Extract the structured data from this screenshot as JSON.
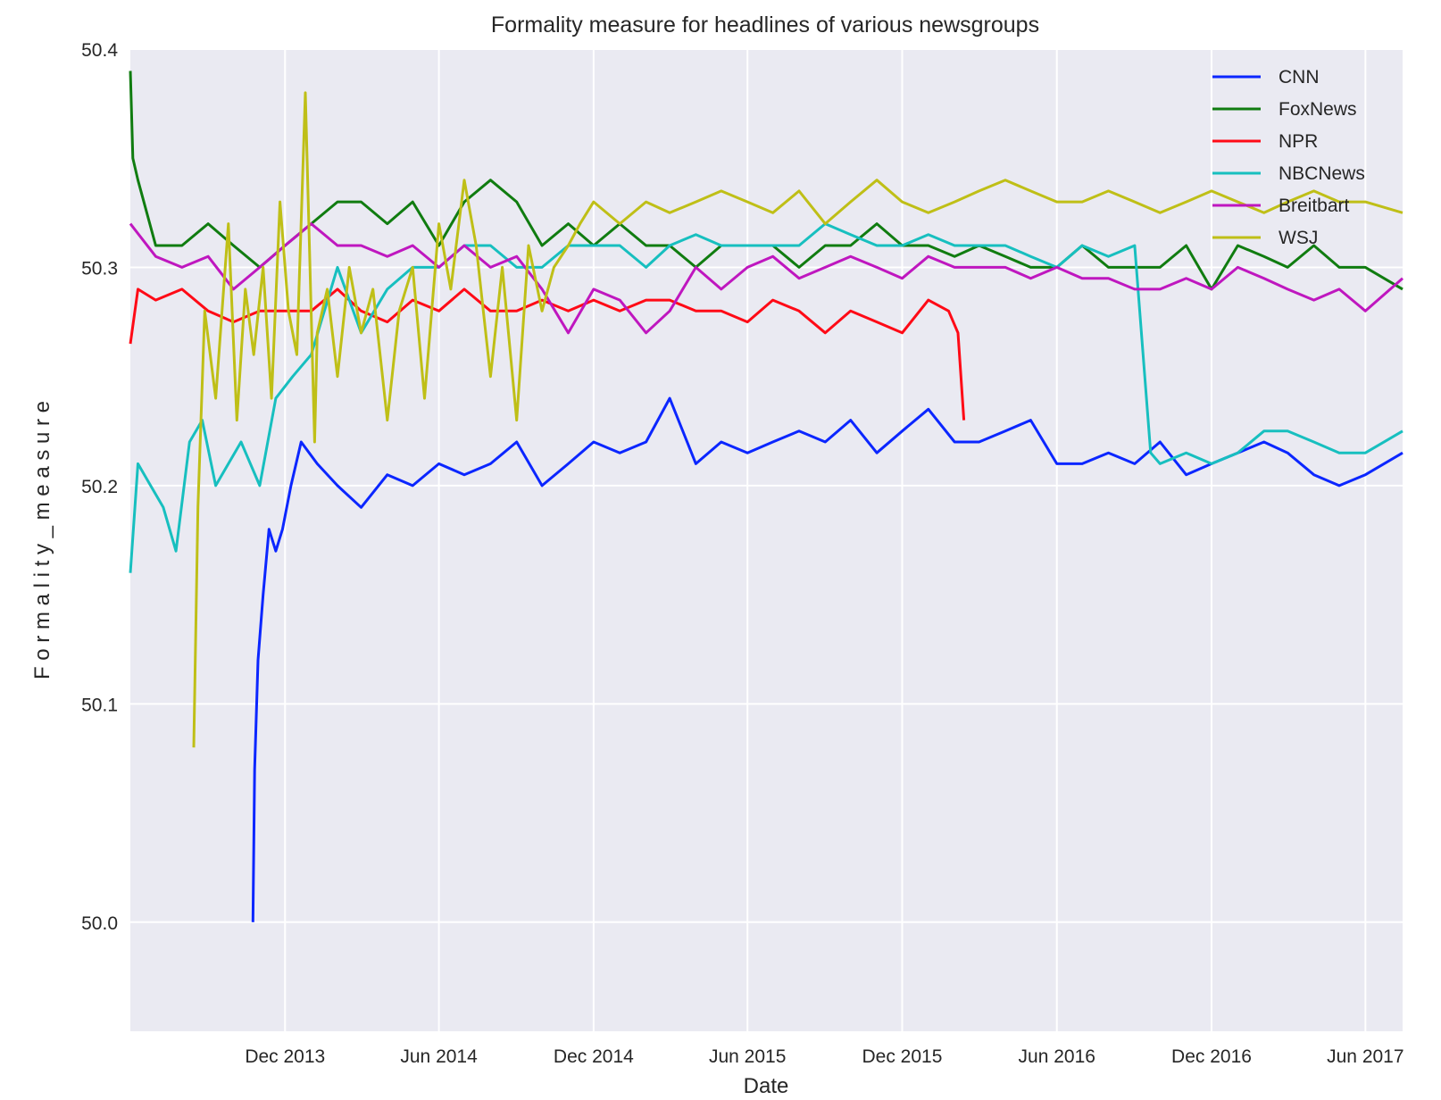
{
  "chart_data": {
    "type": "line",
    "title": "Formality measure for headlines of various newsgroups",
    "xlabel": "Date",
    "ylabel": "F o r m a l i t y _ m e a s u r e",
    "xlim": [
      "2013-06-01",
      "2017-07-15"
    ],
    "ylim": [
      49.95,
      50.4
    ],
    "x_ticks": [
      {
        "date": "2013-12-01",
        "label": "Dec 2013"
      },
      {
        "date": "2014-06-01",
        "label": "Jun 2014"
      },
      {
        "date": "2014-12-01",
        "label": "Dec 2014"
      },
      {
        "date": "2015-06-01",
        "label": "Jun 2015"
      },
      {
        "date": "2015-12-01",
        "label": "Dec 2015"
      },
      {
        "date": "2016-06-01",
        "label": "Jun 2016"
      },
      {
        "date": "2016-12-01",
        "label": "Dec 2016"
      },
      {
        "date": "2017-06-01",
        "label": "Jun 2017"
      }
    ],
    "y_ticks": [
      {
        "value": 50.0,
        "label": "50.0"
      },
      {
        "value": 50.1,
        "label": "50.1"
      },
      {
        "value": 50.2,
        "label": "50.2"
      },
      {
        "value": 50.3,
        "label": "50.3"
      },
      {
        "value": 50.4,
        "label": "50.4"
      }
    ],
    "grid": true,
    "background": "#eaeaf2",
    "legend_position": "top-right",
    "series": [
      {
        "name": "CNN",
        "color": "#0b26ff",
        "x": [
          "2013-10-24",
          "2013-10-26",
          "2013-10-30",
          "2013-11-05",
          "2013-11-12",
          "2013-11-20",
          "2013-11-28",
          "2013-12-08",
          "2013-12-20",
          "2014-01-08",
          "2014-02-01",
          "2014-03-01",
          "2014-04-01",
          "2014-05-01",
          "2014-06-01",
          "2014-07-01",
          "2014-08-01",
          "2014-09-01",
          "2014-10-01",
          "2014-11-01",
          "2014-12-01",
          "2015-01-01",
          "2015-02-01",
          "2015-03-01",
          "2015-04-01",
          "2015-05-01",
          "2015-06-01",
          "2015-07-01",
          "2015-08-01",
          "2015-09-01",
          "2015-10-01",
          "2015-11-01",
          "2015-12-01",
          "2016-01-01",
          "2016-02-01",
          "2016-03-01",
          "2016-04-01",
          "2016-05-01",
          "2016-06-01",
          "2016-07-01",
          "2016-08-01",
          "2016-09-01",
          "2016-10-01",
          "2016-11-01",
          "2016-12-01",
          "2017-01-01",
          "2017-02-01",
          "2017-03-01",
          "2017-04-01",
          "2017-05-01",
          "2017-06-01",
          "2017-07-15"
        ],
        "y": [
          50.0,
          50.07,
          50.12,
          50.15,
          50.18,
          50.17,
          50.18,
          50.2,
          50.22,
          50.21,
          50.2,
          50.19,
          50.205,
          50.2,
          50.21,
          50.205,
          50.21,
          50.22,
          50.2,
          50.21,
          50.22,
          50.215,
          50.22,
          50.24,
          50.21,
          50.22,
          50.215,
          50.22,
          50.225,
          50.22,
          50.23,
          50.215,
          50.225,
          50.235,
          50.22,
          50.22,
          50.225,
          50.23,
          50.21,
          50.21,
          50.215,
          50.21,
          50.22,
          50.205,
          50.21,
          50.215,
          50.22,
          50.215,
          50.205,
          50.2,
          50.205,
          50.215
        ]
      },
      {
        "name": "FoxNews",
        "color": "#107c10",
        "x": [
          "2013-06-01",
          "2013-06-04",
          "2013-06-10",
          "2013-07-01",
          "2013-08-01",
          "2013-09-01",
          "2013-10-01",
          "2013-11-01",
          "2013-12-01",
          "2014-01-01",
          "2014-02-01",
          "2014-03-01",
          "2014-04-01",
          "2014-05-01",
          "2014-06-01",
          "2014-07-01",
          "2014-08-01",
          "2014-09-01",
          "2014-10-01",
          "2014-11-01",
          "2014-12-01",
          "2015-01-01",
          "2015-02-01",
          "2015-03-01",
          "2015-04-01",
          "2015-05-01",
          "2015-06-01",
          "2015-07-01",
          "2015-08-01",
          "2015-09-01",
          "2015-10-01",
          "2015-11-01",
          "2015-12-01",
          "2016-01-01",
          "2016-02-01",
          "2016-03-01",
          "2016-04-01",
          "2016-05-01",
          "2016-06-01",
          "2016-07-01",
          "2016-08-01",
          "2016-09-01",
          "2016-10-01",
          "2016-11-01",
          "2016-12-01",
          "2017-01-01",
          "2017-02-01",
          "2017-03-01",
          "2017-04-01",
          "2017-05-01",
          "2017-06-01",
          "2017-07-15"
        ],
        "y": [
          50.39,
          50.35,
          50.34,
          50.31,
          50.31,
          50.32,
          50.31,
          50.3,
          50.31,
          50.32,
          50.33,
          50.33,
          50.32,
          50.33,
          50.31,
          50.33,
          50.34,
          50.33,
          50.31,
          50.32,
          50.31,
          50.32,
          50.31,
          50.31,
          50.3,
          50.31,
          50.31,
          50.31,
          50.3,
          50.31,
          50.31,
          50.32,
          50.31,
          50.31,
          50.305,
          50.31,
          50.305,
          50.3,
          50.3,
          50.31,
          50.3,
          50.3,
          50.3,
          50.31,
          50.29,
          50.31,
          50.305,
          50.3,
          50.31,
          50.3,
          50.3,
          50.29
        ]
      },
      {
        "name": "NPR",
        "color": "#ff0a16",
        "x": [
          "2013-06-01",
          "2013-06-10",
          "2013-07-01",
          "2013-08-01",
          "2013-09-01",
          "2013-10-01",
          "2013-11-01",
          "2013-12-01",
          "2014-01-01",
          "2014-02-01",
          "2014-03-01",
          "2014-04-01",
          "2014-05-01",
          "2014-06-01",
          "2014-07-01",
          "2014-08-01",
          "2014-09-01",
          "2014-10-01",
          "2014-11-01",
          "2014-12-01",
          "2015-01-01",
          "2015-02-01",
          "2015-03-01",
          "2015-04-01",
          "2015-05-01",
          "2015-06-01",
          "2015-07-01",
          "2015-08-01",
          "2015-09-01",
          "2015-10-01",
          "2015-11-01",
          "2015-12-01",
          "2016-01-01",
          "2016-01-25",
          "2016-02-05",
          "2016-02-12"
        ],
        "y": [
          50.265,
          50.29,
          50.285,
          50.29,
          50.28,
          50.275,
          50.28,
          50.28,
          50.28,
          50.29,
          50.28,
          50.275,
          50.285,
          50.28,
          50.29,
          50.28,
          50.28,
          50.285,
          50.28,
          50.285,
          50.28,
          50.285,
          50.285,
          50.28,
          50.28,
          50.275,
          50.285,
          50.28,
          50.27,
          50.28,
          50.275,
          50.27,
          50.285,
          50.28,
          50.27,
          50.23
        ]
      },
      {
        "name": "NBCNews",
        "color": "#17bfbf",
        "x": [
          "2013-06-01",
          "2013-06-10",
          "2013-06-25",
          "2013-07-10",
          "2013-07-25",
          "2013-08-10",
          "2013-08-25",
          "2013-09-10",
          "2013-09-25",
          "2013-10-10",
          "2013-11-01",
          "2013-11-20",
          "2013-12-10",
          "2014-01-01",
          "2014-02-01",
          "2014-03-01",
          "2014-04-01",
          "2014-05-01",
          "2014-06-01",
          "2014-07-01",
          "2014-08-01",
          "2014-09-01",
          "2014-10-01",
          "2014-11-01",
          "2014-12-01",
          "2015-01-01",
          "2015-02-01",
          "2015-03-01",
          "2015-04-01",
          "2015-05-01",
          "2015-06-01",
          "2015-07-01",
          "2015-08-01",
          "2015-09-01",
          "2015-10-01",
          "2015-11-01",
          "2015-12-01",
          "2016-01-01",
          "2016-02-01",
          "2016-03-01",
          "2016-04-01",
          "2016-05-01",
          "2016-06-01",
          "2016-07-01",
          "2016-08-01",
          "2016-09-01",
          "2016-09-20",
          "2016-10-01",
          "2016-11-01",
          "2016-12-01",
          "2017-01-01",
          "2017-02-01",
          "2017-03-01",
          "2017-04-01",
          "2017-05-01",
          "2017-06-01",
          "2017-07-15"
        ],
        "y": [
          50.16,
          50.21,
          50.2,
          50.19,
          50.17,
          50.22,
          50.23,
          50.2,
          50.21,
          50.22,
          50.2,
          50.24,
          50.25,
          50.26,
          50.3,
          50.27,
          50.29,
          50.3,
          50.3,
          50.31,
          50.31,
          50.3,
          50.3,
          50.31,
          50.31,
          50.31,
          50.3,
          50.31,
          50.315,
          50.31,
          50.31,
          50.31,
          50.31,
          50.32,
          50.315,
          50.31,
          50.31,
          50.315,
          50.31,
          50.31,
          50.31,
          50.305,
          50.3,
          50.31,
          50.305,
          50.31,
          50.215,
          50.21,
          50.215,
          50.21,
          50.215,
          50.225,
          50.225,
          50.22,
          50.215,
          50.215,
          50.225
        ]
      },
      {
        "name": "Breitbart",
        "color": "#bf17bf",
        "x": [
          "2013-06-01",
          "2013-07-01",
          "2013-08-01",
          "2013-09-01",
          "2013-10-01",
          "2013-11-01",
          "2013-12-01",
          "2014-01-01",
          "2014-02-01",
          "2014-03-01",
          "2014-04-01",
          "2014-05-01",
          "2014-06-01",
          "2014-07-01",
          "2014-08-01",
          "2014-09-01",
          "2014-10-01",
          "2014-11-01",
          "2014-12-01",
          "2015-01-01",
          "2015-02-01",
          "2015-03-01",
          "2015-04-01",
          "2015-05-01",
          "2015-06-01",
          "2015-07-01",
          "2015-08-01",
          "2015-09-01",
          "2015-10-01",
          "2015-11-01",
          "2015-12-01",
          "2016-01-01",
          "2016-02-01",
          "2016-03-01",
          "2016-04-01",
          "2016-05-01",
          "2016-06-01",
          "2016-07-01",
          "2016-08-01",
          "2016-09-01",
          "2016-10-01",
          "2016-11-01",
          "2016-12-01",
          "2017-01-01",
          "2017-02-01",
          "2017-03-01",
          "2017-04-01",
          "2017-05-01",
          "2017-06-01",
          "2017-07-15"
        ],
        "y": [
          50.32,
          50.305,
          50.3,
          50.305,
          50.29,
          50.3,
          50.31,
          50.32,
          50.31,
          50.31,
          50.305,
          50.31,
          50.3,
          50.31,
          50.3,
          50.305,
          50.29,
          50.27,
          50.29,
          50.285,
          50.27,
          50.28,
          50.3,
          50.29,
          50.3,
          50.305,
          50.295,
          50.3,
          50.305,
          50.3,
          50.295,
          50.305,
          50.3,
          50.3,
          50.3,
          50.295,
          50.3,
          50.295,
          50.295,
          50.29,
          50.29,
          50.295,
          50.29,
          50.3,
          50.295,
          50.29,
          50.285,
          50.29,
          50.28,
          50.295
        ]
      },
      {
        "name": "WSJ",
        "color": "#bfbf17",
        "x": [
          "2013-08-15",
          "2013-08-20",
          "2013-08-28",
          "2013-09-10",
          "2013-09-25",
          "2013-10-05",
          "2013-10-15",
          "2013-10-25",
          "2013-11-05",
          "2013-11-15",
          "2013-11-25",
          "2013-12-05",
          "2013-12-15",
          "2013-12-25",
          "2014-01-05",
          "2014-01-08",
          "2014-01-20",
          "2014-02-01",
          "2014-02-15",
          "2014-03-01",
          "2014-03-15",
          "2014-04-01",
          "2014-04-15",
          "2014-05-01",
          "2014-05-15",
          "2014-06-01",
          "2014-06-15",
          "2014-07-01",
          "2014-07-15",
          "2014-08-01",
          "2014-08-15",
          "2014-09-01",
          "2014-09-15",
          "2014-10-01",
          "2014-10-15",
          "2014-11-01",
          "2014-11-15",
          "2014-12-01",
          "2015-01-01",
          "2015-02-01",
          "2015-03-01",
          "2015-04-01",
          "2015-05-01",
          "2015-06-01",
          "2015-07-01",
          "2015-08-01",
          "2015-09-01",
          "2015-10-01",
          "2015-11-01",
          "2015-12-01",
          "2016-01-01",
          "2016-02-01",
          "2016-03-01",
          "2016-04-01",
          "2016-05-01",
          "2016-06-01",
          "2016-07-01",
          "2016-08-01",
          "2016-09-01",
          "2016-10-01",
          "2016-11-01",
          "2016-12-01",
          "2017-01-01",
          "2017-02-01",
          "2017-03-01",
          "2017-04-01",
          "2017-05-01",
          "2017-06-01",
          "2017-07-15"
        ],
        "y": [
          50.08,
          50.19,
          50.28,
          50.24,
          50.32,
          50.23,
          50.29,
          50.26,
          50.3,
          50.24,
          50.33,
          50.28,
          50.26,
          50.38,
          50.22,
          50.27,
          50.29,
          50.25,
          50.3,
          50.27,
          50.29,
          50.23,
          50.28,
          50.3,
          50.24,
          50.32,
          50.29,
          50.34,
          50.31,
          50.25,
          50.3,
          50.23,
          50.31,
          50.28,
          50.3,
          50.31,
          50.32,
          50.33,
          50.32,
          50.33,
          50.325,
          50.33,
          50.335,
          50.33,
          50.325,
          50.335,
          50.32,
          50.33,
          50.34,
          50.33,
          50.325,
          50.33,
          50.335,
          50.34,
          50.335,
          50.33,
          50.33,
          50.335,
          50.33,
          50.325,
          50.33,
          50.335,
          50.33,
          50.325,
          50.33,
          50.335,
          50.33,
          50.33,
          50.325
        ]
      }
    ]
  }
}
